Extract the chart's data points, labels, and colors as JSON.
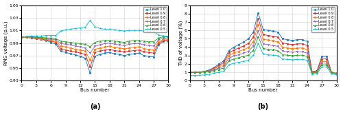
{
  "bus_numbers": [
    0,
    1,
    2,
    3,
    4,
    5,
    6,
    7,
    8,
    9,
    10,
    11,
    12,
    13,
    14,
    15,
    16,
    17,
    18,
    19,
    20,
    21,
    22,
    23,
    24,
    25,
    26,
    27,
    28,
    29,
    30
  ],
  "rms_levels": {
    "1.0": [
      0.999,
      0.999,
      0.998,
      0.997,
      0.996,
      0.994,
      0.991,
      0.988,
      0.977,
      0.975,
      0.973,
      0.971,
      0.969,
      0.966,
      0.942,
      0.969,
      0.972,
      0.974,
      0.975,
      0.973,
      0.972,
      0.97,
      0.972,
      0.973,
      0.974,
      0.97,
      0.969,
      0.968,
      0.987,
      0.993,
      0.993
    ],
    "0.9": [
      0.999,
      0.999,
      0.998,
      0.997,
      0.996,
      0.995,
      0.993,
      0.991,
      0.981,
      0.979,
      0.977,
      0.976,
      0.974,
      0.972,
      0.952,
      0.975,
      0.977,
      0.979,
      0.98,
      0.978,
      0.977,
      0.976,
      0.977,
      0.978,
      0.979,
      0.976,
      0.975,
      0.974,
      0.99,
      0.994,
      0.994
    ],
    "0.8": [
      0.999,
      0.999,
      0.999,
      0.998,
      0.997,
      0.996,
      0.995,
      0.993,
      0.985,
      0.984,
      0.982,
      0.98,
      0.979,
      0.977,
      0.963,
      0.98,
      0.982,
      0.984,
      0.985,
      0.983,
      0.982,
      0.981,
      0.982,
      0.983,
      0.984,
      0.981,
      0.98,
      0.979,
      0.992,
      0.996,
      0.996
    ],
    "0.7": [
      0.999,
      1.0,
      0.999,
      0.999,
      0.998,
      0.997,
      0.996,
      0.995,
      0.989,
      0.988,
      0.987,
      0.985,
      0.984,
      0.982,
      0.974,
      0.985,
      0.987,
      0.989,
      0.99,
      0.988,
      0.987,
      0.986,
      0.988,
      0.989,
      0.989,
      0.987,
      0.986,
      0.985,
      0.995,
      0.998,
      0.998
    ],
    "0.6": [
      1.0,
      1.0,
      1.0,
      0.999,
      0.999,
      0.998,
      0.998,
      0.997,
      0.993,
      0.992,
      0.991,
      0.99,
      0.989,
      0.988,
      0.984,
      0.991,
      0.993,
      0.994,
      0.994,
      0.993,
      0.992,
      0.991,
      0.993,
      0.994,
      0.994,
      0.993,
      0.992,
      0.992,
      0.998,
      1.0,
      1.0
    ],
    "0.5": [
      1.0,
      1.0,
      1.001,
      1.001,
      1.001,
      1.002,
      1.002,
      1.002,
      1.009,
      1.011,
      1.012,
      1.013,
      1.014,
      1.015,
      1.026,
      1.016,
      1.013,
      1.012,
      1.012,
      1.011,
      1.01,
      1.009,
      1.01,
      1.01,
      1.01,
      1.009,
      1.008,
      1.008,
      1.003,
      1.001,
      1.001
    ]
  },
  "thd_levels": {
    "1.0": [
      1.0,
      1.0,
      1.05,
      1.12,
      1.3,
      1.6,
      2.0,
      2.4,
      3.6,
      4.0,
      4.3,
      4.6,
      5.0,
      5.8,
      8.1,
      6.1,
      6.0,
      5.9,
      5.8,
      5.0,
      4.9,
      4.8,
      4.9,
      4.9,
      4.7,
      1.1,
      1.2,
      2.9,
      2.9,
      1.0,
      0.9
    ],
    "0.9": [
      1.0,
      1.0,
      1.04,
      1.1,
      1.25,
      1.5,
      1.85,
      2.2,
      3.3,
      3.65,
      3.9,
      4.15,
      4.45,
      5.2,
      7.4,
      5.5,
      5.4,
      5.3,
      5.2,
      4.5,
      4.4,
      4.3,
      4.4,
      4.4,
      4.2,
      1.05,
      1.15,
      2.6,
      2.6,
      1.0,
      0.9
    ],
    "0.8": [
      1.0,
      1.0,
      1.03,
      1.08,
      1.2,
      1.42,
      1.7,
      1.95,
      3.0,
      3.3,
      3.5,
      3.7,
      3.95,
      4.65,
      6.7,
      4.95,
      4.85,
      4.75,
      4.65,
      4.0,
      3.9,
      3.8,
      3.9,
      3.9,
      3.7,
      1.0,
      1.1,
      2.3,
      2.3,
      1.0,
      0.9
    ],
    "0.7": [
      1.0,
      1.0,
      1.02,
      1.06,
      1.15,
      1.32,
      1.53,
      1.73,
      2.7,
      2.95,
      3.1,
      3.3,
      3.5,
      4.15,
      5.95,
      4.4,
      4.3,
      4.2,
      4.1,
      3.55,
      3.45,
      3.4,
      3.45,
      3.45,
      3.3,
      0.95,
      1.05,
      2.1,
      2.1,
      0.98,
      0.88
    ],
    "0.6": [
      1.0,
      1.0,
      1.01,
      1.04,
      1.1,
      1.22,
      1.38,
      1.52,
      2.4,
      2.6,
      2.75,
      2.9,
      3.05,
      3.65,
      5.25,
      3.85,
      3.75,
      3.7,
      3.6,
      3.1,
      3.05,
      3.0,
      3.05,
      3.05,
      2.92,
      0.9,
      1.0,
      1.9,
      1.9,
      0.95,
      0.85
    ],
    "0.5": [
      0.65,
      0.65,
      0.67,
      0.7,
      0.78,
      0.9,
      1.03,
      1.15,
      1.9,
      2.1,
      2.2,
      2.3,
      2.45,
      3.05,
      4.45,
      3.2,
      3.1,
      3.05,
      3.0,
      2.6,
      2.55,
      2.5,
      2.55,
      2.55,
      2.45,
      0.78,
      0.88,
      1.65,
      1.65,
      0.82,
      0.72
    ]
  },
  "colors": {
    "1.0": "#1f77b4",
    "0.9": "#d62728",
    "0.8": "#ff7f0e",
    "0.7": "#9467bd",
    "0.6": "#2ca02c",
    "0.5": "#17becf"
  },
  "markers": {
    "1.0": "o",
    "0.9": "s",
    "0.8": "D",
    "0.7": "v",
    "0.6": "^",
    "0.5": "*"
  },
  "rms_ylim": [
    0.93,
    1.05
  ],
  "rms_yticks": [
    0.93,
    0.95,
    0.97,
    0.99,
    1.01,
    1.03,
    1.05
  ],
  "thd_ylim": [
    0,
    9
  ],
  "thd_yticks": [
    0,
    1,
    2,
    3,
    4,
    5,
    6,
    7,
    8,
    9
  ],
  "xticks": [
    0,
    3,
    6,
    9,
    12,
    15,
    18,
    21,
    24,
    27,
    30
  ],
  "xlabel": "Bus number",
  "rms_ylabel": "RMS voltage (p.u.)",
  "thd_ylabel": "THD of voltage (%)",
  "label_a": "(a)",
  "label_b": "(b)"
}
